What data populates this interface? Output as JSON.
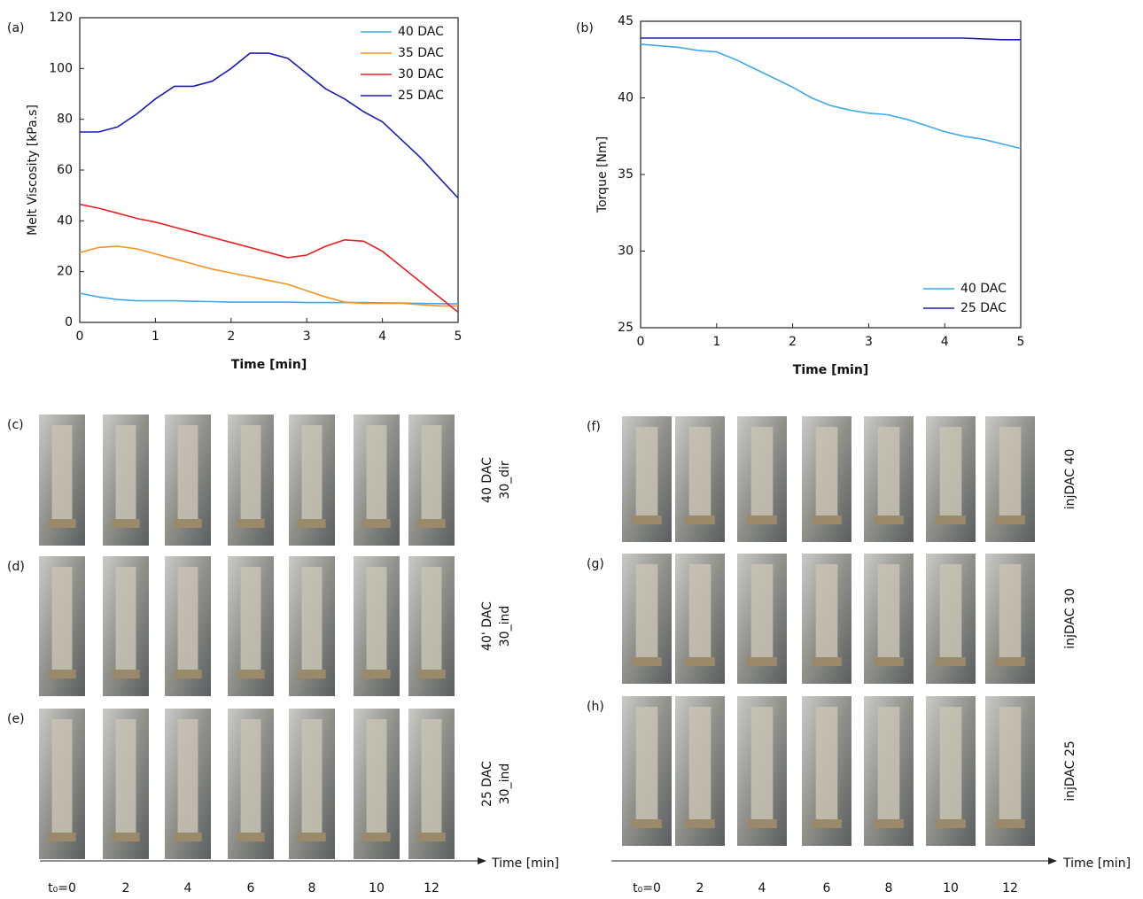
{
  "chart_data": [
    {
      "type": "line",
      "panel_label": "(a)",
      "x_label": "Time [min]",
      "y_label": "Melt Viscosity [kPa.s]",
      "x": [
        0,
        0.25,
        0.5,
        0.75,
        1,
        1.25,
        1.5,
        1.75,
        2,
        2.25,
        2.5,
        2.75,
        3,
        3.25,
        3.5,
        3.75,
        4,
        4.25,
        4.5,
        4.75,
        5
      ],
      "series": [
        {
          "name": "40 DAC",
          "color": "#3fa9ea",
          "values": [
            11.5,
            10,
            9,
            8.5,
            8.5,
            8.5,
            8.3,
            8.2,
            8,
            8,
            8,
            8,
            7.8,
            7.8,
            7.8,
            7.8,
            7.7,
            7.6,
            7.5,
            7.4,
            7.3
          ]
        },
        {
          "name": "35 DAC",
          "color": "#f39322",
          "values": [
            27.5,
            29.5,
            30,
            29,
            27,
            25,
            23,
            21,
            19.5,
            18,
            16.5,
            15,
            12.5,
            10,
            8,
            7.5,
            7.5,
            7.5,
            7,
            6.5,
            6.5
          ]
        },
        {
          "name": "30 DAC",
          "color": "#e8201f",
          "values": [
            46.5,
            45,
            43,
            41,
            39.5,
            37.5,
            35.5,
            33.5,
            31.5,
            29.5,
            27.5,
            25.5,
            26.5,
            30,
            32.5,
            32,
            28,
            22,
            16,
            10,
            4
          ]
        },
        {
          "name": "25 DAC",
          "color": "#1c1cb4",
          "values": [
            75,
            75,
            77,
            82,
            88,
            93,
            93,
            95,
            100,
            106,
            106,
            104,
            98,
            92,
            88,
            83,
            79,
            72,
            65,
            57,
            49
          ]
        }
      ],
      "xlim": [
        0,
        5
      ],
      "xticks": [
        0,
        1,
        2,
        3,
        4,
        5
      ],
      "ylim": [
        0,
        120
      ],
      "yticks": [
        0,
        20,
        40,
        60,
        80,
        100,
        120
      ],
      "legend": "upper-right"
    },
    {
      "type": "line",
      "panel_label": "(b)",
      "x_label": "Time [min]",
      "y_label": "Torque [Nm]",
      "x": [
        0,
        0.25,
        0.5,
        0.75,
        1,
        1.25,
        1.5,
        1.75,
        2,
        2.25,
        2.5,
        2.75,
        3,
        3.25,
        3.5,
        3.75,
        4,
        4.25,
        4.5,
        4.75,
        5
      ],
      "series": [
        {
          "name": "40 DAC",
          "color": "#3fa9ea",
          "values": [
            43.5,
            43.4,
            43.3,
            43.1,
            43,
            42.5,
            41.9,
            41.3,
            40.7,
            40,
            39.5,
            39.2,
            39,
            38.9,
            38.6,
            38.2,
            37.8,
            37.5,
            37.3,
            37,
            36.7
          ]
        },
        {
          "name": "25 DAC",
          "color": "#1c1cb4",
          "values": [
            43.9,
            43.9,
            43.9,
            43.9,
            43.9,
            43.9,
            43.9,
            43.9,
            43.9,
            43.9,
            43.9,
            43.9,
            43.9,
            43.9,
            43.9,
            43.9,
            43.9,
            43.9,
            43.85,
            43.8,
            43.8
          ]
        }
      ],
      "xlim": [
        0,
        5
      ],
      "xticks": [
        0,
        1,
        2,
        3,
        4,
        5
      ],
      "ylim": [
        25,
        45
      ],
      "yticks": [
        25,
        30,
        35,
        40,
        45
      ],
      "legend": "lower-right"
    }
  ],
  "photo_groups": [
    {
      "rows": [
        {
          "label": "(c)",
          "caption": [
            "40 DAC",
            "30_dir"
          ]
        },
        {
          "label": "(d)",
          "caption": [
            "40' DAC",
            "30_ind"
          ]
        },
        {
          "label": "(e)",
          "caption": [
            "25 DAC",
            "30_ind"
          ]
        }
      ],
      "time_labels": [
        "t₀=0",
        "2",
        "4",
        "6",
        "8",
        "10",
        "12"
      ],
      "time_axis_title": "Time [min]"
    },
    {
      "rows": [
        {
          "label": "(f)",
          "caption": [
            "injDAC 40"
          ]
        },
        {
          "label": "(g)",
          "caption": [
            "injDAC 30"
          ]
        },
        {
          "label": "(h)",
          "caption": [
            "injDAC 25"
          ]
        }
      ],
      "time_labels": [
        "t₀=0",
        "2",
        "4",
        "6",
        "8",
        "10",
        "12"
      ],
      "time_axis_title": "Time [min]"
    }
  ]
}
